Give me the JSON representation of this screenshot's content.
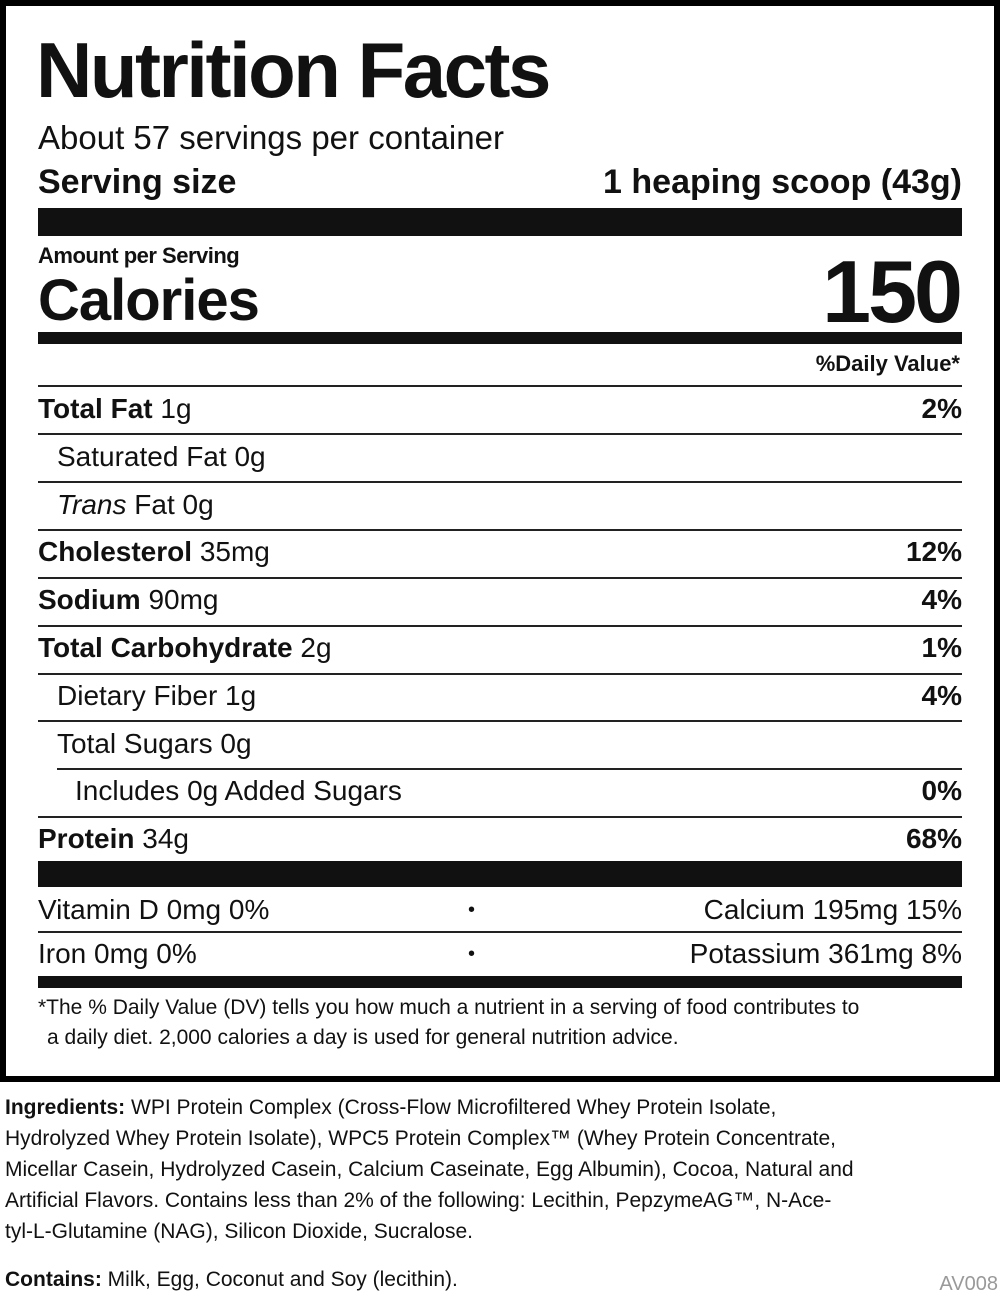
{
  "label": {
    "title": "Nutrition Facts",
    "servings": "About 57 servings per container",
    "serving_size": {
      "label": "Serving size",
      "value": "1 heaping scoop (43g)"
    },
    "amount_per_serving": "Amount per Serving",
    "calories": {
      "label": "Calories",
      "value": "150"
    },
    "dv_header": "%Daily Value*",
    "rows": [
      {
        "name": "Total Fat",
        "amount": "1g",
        "dv": "2%"
      },
      {
        "name": "Saturated Fat",
        "amount": "0g"
      },
      {
        "name_italic": "Trans",
        "name": "Fat",
        "amount": "0g"
      },
      {
        "name": "Cholesterol",
        "amount": "35mg",
        "dv": "12%"
      },
      {
        "name": "Sodium",
        "amount": "90mg",
        "dv": "4%"
      },
      {
        "name": "Total Carbohydrate",
        "amount": "2g",
        "dv": "1%"
      },
      {
        "name": "Dietary Fiber",
        "amount": "1g",
        "dv": "4%"
      },
      {
        "name": "Total Sugars",
        "amount": "0g"
      },
      {
        "name": "Includes 0g Added Sugars",
        "dv": "0%"
      },
      {
        "name": "Protein",
        "amount": "34g",
        "dv": "68%"
      }
    ],
    "vitamins": [
      {
        "left": "Vitamin D 0mg 0%",
        "bullet": "•",
        "right": "Calcium 195mg 15%"
      },
      {
        "left": "Iron 0mg 0%",
        "bullet": "•",
        "right": "Potassium 361mg 8%"
      }
    ],
    "footnote": [
      "*The % Daily Value (DV) tells you how much a nutrient in a serving of food contributes to",
      "a daily diet. 2,000 calories a day is used for general nutrition advice."
    ]
  },
  "ingredients": {
    "label": "Ingredients:",
    "lines": [
      "WPI Protein Complex (Cross-Flow Microfiltered Whey Protein Isolate,",
      "Hydrolyzed Whey Protein Isolate), WPC5 Protein Complex™ (Whey Protein Concentrate,",
      "Micellar Casein, Hydrolyzed Casein, Calcium Caseinate, Egg Albumin), Cocoa, Natural and",
      "Artificial Flavors. Contains less than 2% of the following: Lecithin, PepzymeAG™, N-Ace-",
      "tyl-L-Glutamine (NAG), Silicon Dioxide, Sucralose."
    ]
  },
  "contains": {
    "label": "Contains:",
    "text": "Milk, Egg, Coconut and Soy (lecithin)."
  },
  "code": "AV008"
}
